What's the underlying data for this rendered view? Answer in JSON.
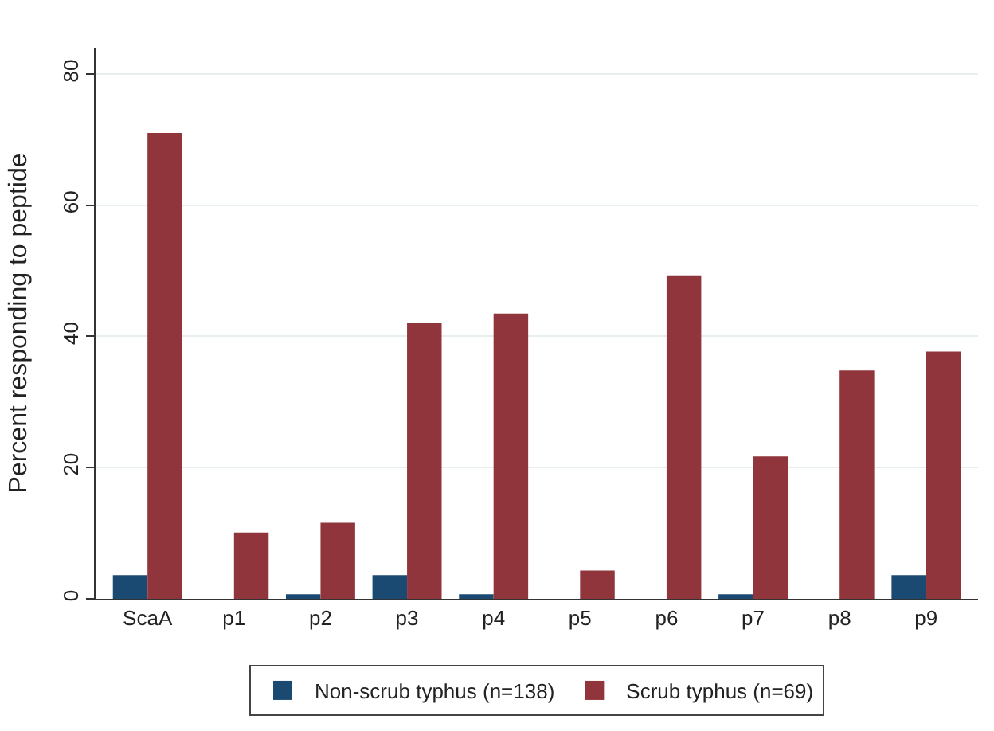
{
  "chart_data": {
    "type": "bar",
    "ylabel": "Percent responding to peptide",
    "categories": [
      "ScaA",
      "p1",
      "p2",
      "p3",
      "p4",
      "p5",
      "p6",
      "p7",
      "p8",
      "p9"
    ],
    "series": [
      {
        "name": "Non-scrub typhus (n=138)",
        "color": "#1a4a72",
        "values": [
          3.6,
          0,
          0.7,
          3.6,
          0.7,
          0,
          0,
          0.7,
          0,
          3.6
        ]
      },
      {
        "name": "Scrub typhus (n=69)",
        "color": "#90353b",
        "values": [
          71.0,
          10.1,
          11.6,
          42.0,
          43.5,
          4.3,
          49.3,
          21.7,
          34.8,
          37.7
        ]
      }
    ],
    "ylim": [
      0,
      84
    ],
    "yticks": [
      0,
      20,
      40,
      60,
      80
    ],
    "grid": "y",
    "legend": "bottom"
  }
}
